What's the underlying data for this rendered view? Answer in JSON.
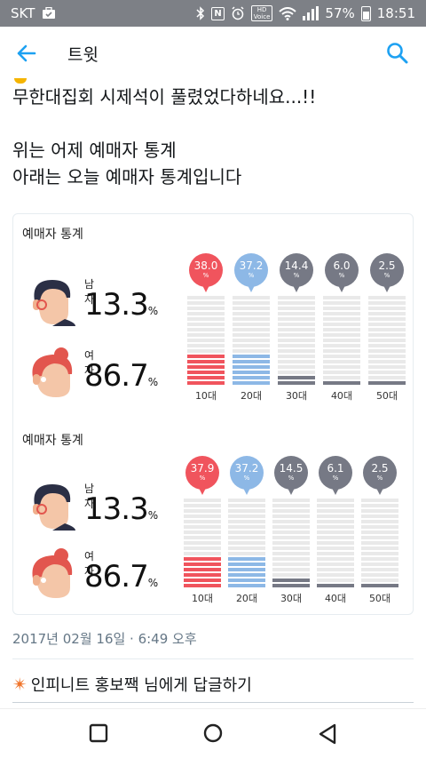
{
  "status_bar": {
    "carrier": "SKT",
    "battery": "57%",
    "time": "18:51",
    "hd_top": "HD",
    "hd_bottom": "Voice",
    "nfc": "N"
  },
  "header": {
    "title": "트윗"
  },
  "tweet": {
    "line1": "무한대집회 시제석이 풀렸었다하네요...!!",
    "line2": "위는 어제 예매자 통계",
    "line3": "아래는 오늘 예매자 통계입니다"
  },
  "stats": [
    {
      "title": "예매자 통계",
      "male_label": "남자",
      "male_value": "13.3",
      "female_label": "여자",
      "female_value": "86.7",
      "pct": "%",
      "ages": [
        {
          "label": "10대",
          "value": "38.0",
          "fill": 0.38,
          "color": "#f0545d"
        },
        {
          "label": "20대",
          "value": "37.2",
          "fill": 0.372,
          "color": "#8db8e6"
        },
        {
          "label": "30대",
          "value": "14.4",
          "fill": 0.144,
          "color": "#767985"
        },
        {
          "label": "40대",
          "value": "6.0",
          "fill": 0.06,
          "color": "#767985"
        },
        {
          "label": "50대",
          "value": "2.5",
          "fill": 0.025,
          "color": "#767985"
        }
      ]
    },
    {
      "title": "예매자 통계",
      "male_label": "남자",
      "male_value": "13.3",
      "female_label": "여자",
      "female_value": "86.7",
      "pct": "%",
      "ages": [
        {
          "label": "10대",
          "value": "37.9",
          "fill": 0.379,
          "color": "#f0545d"
        },
        {
          "label": "20대",
          "value": "37.2",
          "fill": 0.372,
          "color": "#8db8e6"
        },
        {
          "label": "30대",
          "value": "14.5",
          "fill": 0.145,
          "color": "#767985"
        },
        {
          "label": "40대",
          "value": "6.1",
          "fill": 0.061,
          "color": "#767985"
        },
        {
          "label": "50대",
          "value": "2.5",
          "fill": 0.025,
          "color": "#767985"
        }
      ]
    }
  ],
  "meta": {
    "timestamp": "2017년 02월 16일 · 6:49 오후",
    "reply_prompt": "인피니트 홍보짹 님에게 답글하기"
  },
  "icons": {
    "back": "arrow-left-icon",
    "search": "search-icon",
    "reply_emoji": "sparkle-icon"
  },
  "colors": {
    "accent": "#1da1f2",
    "statusbar": "#7d8086"
  }
}
